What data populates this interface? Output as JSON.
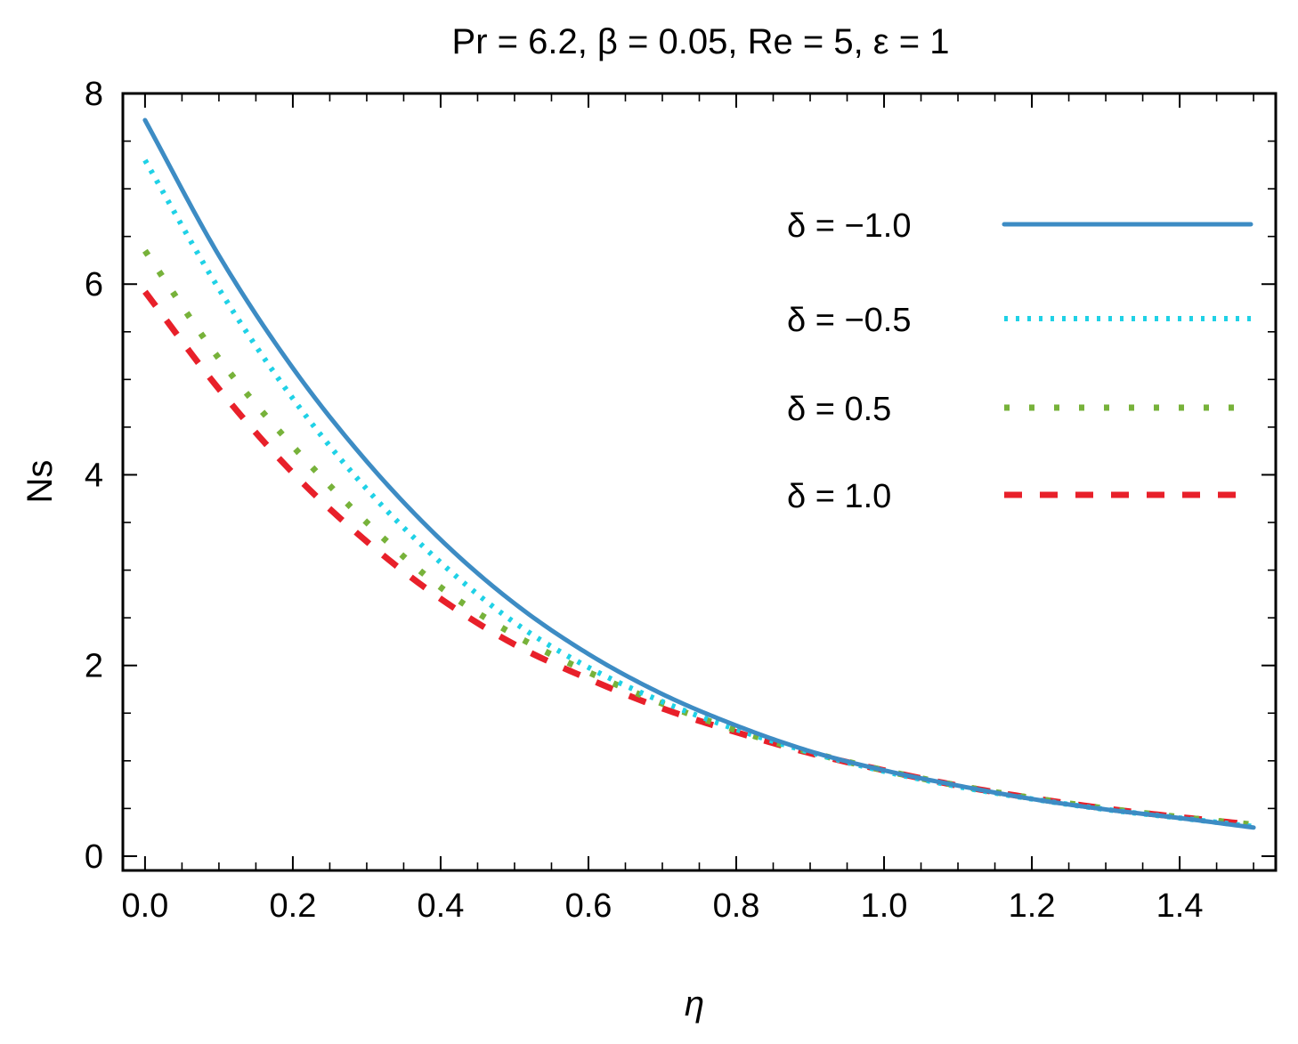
{
  "chart_data": {
    "type": "line",
    "title": "Pr = 6.2, β = 0.05, Re = 5, ε = 1",
    "xlabel": "η",
    "ylabel": "Ns",
    "xlim": [
      -0.03,
      1.53
    ],
    "ylim": [
      -0.15,
      8.0
    ],
    "x_ticks": [
      0.0,
      0.2,
      0.4,
      0.6,
      0.8,
      1.0,
      1.2,
      1.4
    ],
    "x_tick_labels": [
      "0.0",
      "0.2",
      "0.4",
      "0.6",
      "0.8",
      "1.0",
      "1.2",
      "1.4"
    ],
    "y_ticks": [
      0,
      2,
      4,
      6,
      8
    ],
    "y_tick_labels": [
      "0",
      "2",
      "4",
      "6",
      "8"
    ],
    "grid": false,
    "legend_position": "top-right",
    "x": [
      0.0,
      0.1,
      0.2,
      0.3,
      0.4,
      0.5,
      0.6,
      0.7,
      0.8,
      0.9,
      1.0,
      1.1,
      1.2,
      1.3,
      1.4,
      1.5
    ],
    "series": [
      {
        "name": "δ = −1.0",
        "style": "solid",
        "color": "#3d8cc4",
        "values": [
          7.72,
          6.3,
          5.12,
          4.14,
          3.32,
          2.65,
          2.12,
          1.7,
          1.37,
          1.1,
          0.9,
          0.74,
          0.6,
          0.49,
          0.4,
          0.3
        ]
      },
      {
        "name": "δ = −0.5",
        "style": "dotted",
        "color": "#1fd1e6",
        "values": [
          7.3,
          5.95,
          4.8,
          3.85,
          3.08,
          2.45,
          1.98,
          1.62,
          1.33,
          1.09,
          0.89,
          0.73,
          0.6,
          0.49,
          0.4,
          0.31
        ]
      },
      {
        "name": "δ = 0.5",
        "style": "dotted-sparse",
        "color": "#77b23a",
        "values": [
          6.35,
          5.22,
          4.3,
          3.5,
          2.82,
          2.32,
          1.93,
          1.6,
          1.32,
          1.09,
          0.9,
          0.74,
          0.61,
          0.5,
          0.41,
          0.33
        ]
      },
      {
        "name": "δ = 1.0",
        "style": "dashed",
        "color": "#e8202a",
        "values": [
          5.92,
          4.9,
          4.02,
          3.3,
          2.7,
          2.22,
          1.86,
          1.55,
          1.3,
          1.08,
          0.9,
          0.74,
          0.61,
          0.5,
          0.41,
          0.33
        ]
      }
    ]
  }
}
